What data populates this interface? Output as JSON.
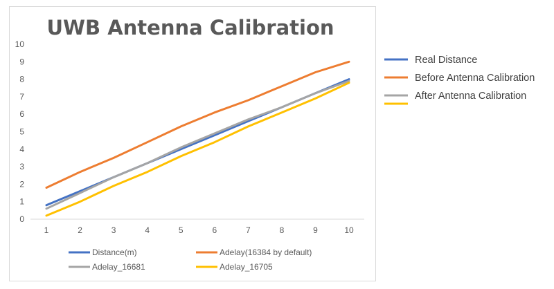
{
  "chart_data": {
    "type": "line",
    "title": "UWB Antenna Calibration",
    "x": [
      1,
      2,
      3,
      4,
      5,
      6,
      7,
      8,
      9,
      10
    ],
    "ylim": [
      0,
      10
    ],
    "y_ticks": [
      "0",
      "1",
      "2",
      "3",
      "4",
      "5",
      "6",
      "7",
      "8",
      "9",
      "10"
    ],
    "x_ticks": [
      "1",
      "2",
      "3",
      "4",
      "5",
      "6",
      "7",
      "8",
      "9",
      "10"
    ],
    "grid": false,
    "series": [
      {
        "name": "Distance(m)",
        "color": "#4472c4",
        "values": [
          0.8,
          1.6,
          2.4,
          3.2,
          4.0,
          4.8,
          5.6,
          6.4,
          7.2,
          8.0
        ]
      },
      {
        "name": "Adelay(16384 by default)",
        "color": "#ed7d31",
        "values": [
          1.8,
          2.7,
          3.5,
          4.4,
          5.3,
          6.1,
          6.8,
          7.6,
          8.4,
          9.0
        ]
      },
      {
        "name": "Adelay_16681",
        "color": "#a5a5a5",
        "values": [
          0.6,
          1.5,
          2.4,
          3.2,
          4.1,
          4.9,
          5.7,
          6.4,
          7.2,
          7.9
        ]
      },
      {
        "name": "Adelay_16705",
        "color": "#ffc000",
        "values": [
          0.2,
          1.0,
          1.9,
          2.7,
          3.6,
          4.4,
          5.3,
          6.1,
          6.9,
          7.8
        ]
      }
    ],
    "legend_bottom": [
      {
        "label": "Distance(m)",
        "color": "#4472c4"
      },
      {
        "label": "Adelay(16384 by default)",
        "color": "#ed7d31"
      },
      {
        "label": "Adelay_16681",
        "color": "#a5a5a5"
      },
      {
        "label": "Adelay_16705",
        "color": "#ffc000"
      }
    ],
    "legend_right": [
      {
        "label": "Real Distance",
        "color": "#4472c4"
      },
      {
        "label": "Before Antenna Calibration",
        "color": "#ed7d31"
      },
      {
        "label": "After Antenna Calibration",
        "color": "#a5a5a5"
      },
      {
        "label": "",
        "color": "#ffc000"
      }
    ]
  }
}
